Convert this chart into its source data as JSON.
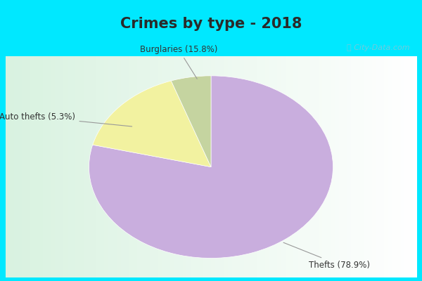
{
  "title": "Crimes by type - 2018",
  "slices": [
    78.9,
    15.8,
    5.3
  ],
  "labels": [
    "Thefts (78.9%)",
    "Burglaries (15.8%)",
    "Auto thefts (5.3%)"
  ],
  "colors": [
    "#c9aede",
    "#f2f2a0",
    "#c5d4a0"
  ],
  "background_fig": "#00e8ff",
  "title_fontsize": 15,
  "label_fontsize": 8.5,
  "watermark": "ⓘ City-Data.com",
  "startangle": 90
}
